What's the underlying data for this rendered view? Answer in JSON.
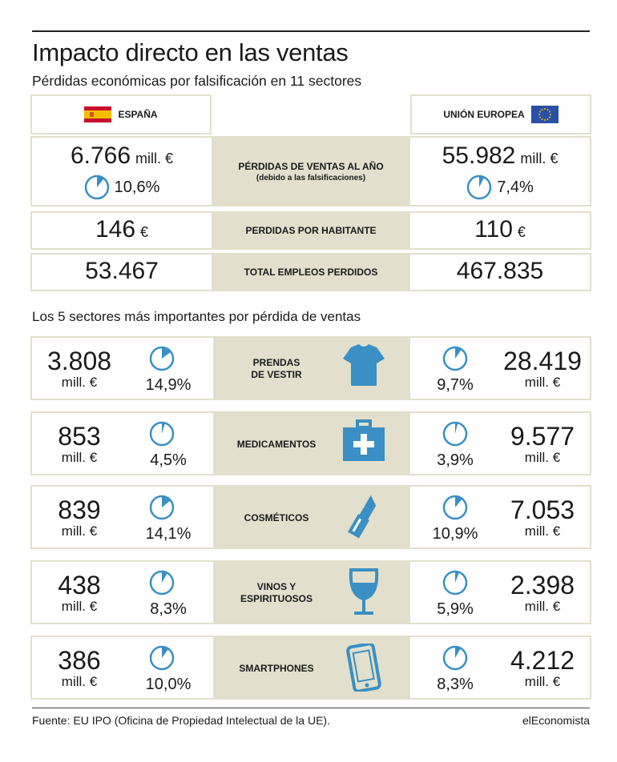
{
  "header": {
    "title": "Impacto directo en las ventas",
    "subtitle": "Pérdidas económicas por falsificación en 11 sectores"
  },
  "columns": {
    "spain": "ESPAÑA",
    "eu": "UNIÓN EUROPEA"
  },
  "summary": [
    {
      "label": "PÉRDIDAS DE VENTAS AL AÑO",
      "sublabel": "(debido a las falsificaciones)",
      "spain_value": "6.766",
      "spain_unit": "mill. €",
      "spain_pct": "10,6%",
      "spain_share": 0.106,
      "eu_value": "55.982",
      "eu_unit": "mill. €",
      "eu_pct": "7,4%",
      "eu_share": 0.074
    },
    {
      "label": "PERDIDAS POR HABITANTE",
      "spain_value": "146",
      "spain_unit": "€",
      "eu_value": "110",
      "eu_unit": "€"
    },
    {
      "label": "TOTAL EMPLEOS PERDIDOS",
      "spain_value": "53.467",
      "eu_value": "467.835"
    }
  ],
  "section_title": "Los 5 sectores más importantes por pérdida de ventas",
  "sectors": [
    {
      "name": "PRENDAS\nDE VESTIR",
      "icon": "tshirt-icon",
      "spain_value": "3.808",
      "spain_pct": "14,9%",
      "spain_share": 0.149,
      "eu_value": "28.419",
      "eu_pct": "9,7%",
      "eu_share": 0.097
    },
    {
      "name": "MEDICAMENTOS",
      "icon": "medicine-kit-icon",
      "spain_value": "853",
      "spain_pct": "4,5%",
      "spain_share": 0.045,
      "eu_value": "9.577",
      "eu_pct": "3,9%",
      "eu_share": 0.039
    },
    {
      "name": "COSMÉTICOS",
      "icon": "lipstick-icon",
      "spain_value": "839",
      "spain_pct": "14,1%",
      "spain_share": 0.141,
      "eu_value": "7.053",
      "eu_pct": "10,9%",
      "eu_share": 0.109
    },
    {
      "name": "VINOS Y\nESPIRITUOSOS",
      "icon": "wine-glass-icon",
      "spain_value": "438",
      "spain_pct": "8,3%",
      "spain_share": 0.083,
      "eu_value": "2.398",
      "eu_pct": "5,9%",
      "eu_share": 0.059
    },
    {
      "name": "SMARTPHONES",
      "icon": "smartphone-icon",
      "spain_value": "386",
      "spain_pct": "10,0%",
      "spain_share": 0.1,
      "eu_value": "4.212",
      "eu_pct": "8,3%",
      "eu_share": 0.083
    }
  ],
  "unit_mill": "mill. €",
  "footer": {
    "source": "Fuente: EU IPO (Oficina de Propiedad Intelectual de la UE).",
    "brand": "elEconomista"
  },
  "colors": {
    "accent": "#3a8fc4",
    "band": "#e2e0cc",
    "spain_red": "#c8102e",
    "spain_yellow": "#f1bf00",
    "eu_blue": "#2a4fa8"
  }
}
